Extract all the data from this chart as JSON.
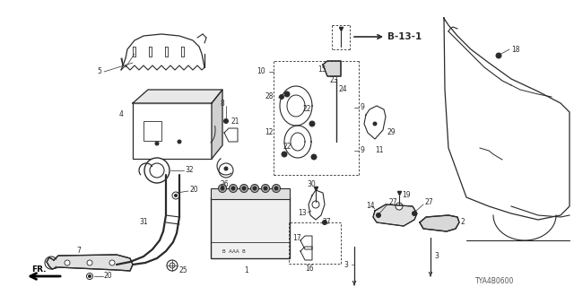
{
  "bg_color": "#ffffff",
  "line_color": "#2a2a2a",
  "diagram_code": "TYA4B0600",
  "ref_label": "B-13-1",
  "fig_w": 6.4,
  "fig_h": 3.2,
  "dpi": 100
}
